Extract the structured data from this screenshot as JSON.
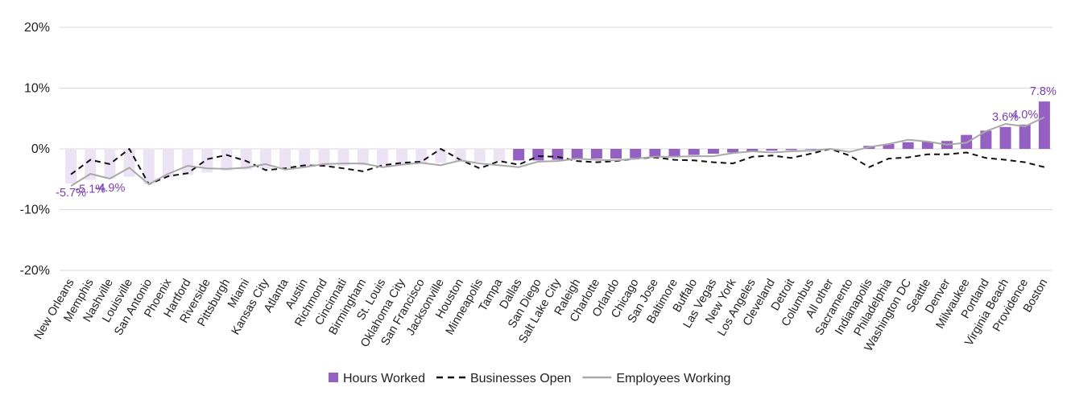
{
  "chart_data": {
    "type": "bar",
    "categories": [
      "New Orleans",
      "Memphis",
      "Nashville",
      "Louisville",
      "San Antonio",
      "Phoenix",
      "Hartford",
      "Riverside",
      "Pittsburgh",
      "Miami",
      "Kansas City",
      "Atlanta",
      "Austin",
      "Richmond",
      "Cincinnati",
      "Birmingham",
      "St. Louis",
      "Oklahoma City",
      "San Francisco",
      "Jacksonville",
      "Houston",
      "Minneapolis",
      "Tampa",
      "Dallas",
      "San Diego",
      "Salt Lake City",
      "Raleigh",
      "Charlotte",
      "Orlando",
      "Chicago",
      "San Jose",
      "Baltimore",
      "Buffalo",
      "Las Vegas",
      "New York",
      "Los Angeles",
      "Cleveland",
      "Detroit",
      "Columbus",
      "All other",
      "Sacramento",
      "Indianapolis",
      "Philadelphia",
      "Washington DC",
      "Seattle",
      "Denver",
      "Milwaukee",
      "Portland",
      "Virginia Beach",
      "Providence",
      "Boston"
    ],
    "series": [
      {
        "name": "Hours Worked",
        "type": "bar",
        "color": "#9461c3",
        "faded_color": "#ece3f4",
        "values": [
          -5.7,
          -5.1,
          -4.9,
          -4.6,
          -5.8,
          -4.7,
          -4.3,
          -3.9,
          -3.6,
          -3.4,
          -3.3,
          -3.2,
          -3.0,
          -2.9,
          -2.8,
          -2.7,
          -2.6,
          -2.5,
          -2.4,
          -2.3,
          -2.2,
          -2.1,
          -2.0,
          -1.9,
          -1.9,
          -1.8,
          -1.7,
          -1.6,
          -1.6,
          -1.5,
          -1.4,
          -1.2,
          -1.0,
          -0.8,
          -0.6,
          -0.4,
          -0.3,
          -0.2,
          -0.1,
          -0.1,
          0.0,
          0.5,
          0.8,
          1.1,
          1.2,
          1.3,
          2.3,
          3.0,
          3.6,
          4.0,
          7.8
        ]
      },
      {
        "name": "Businesses Open",
        "type": "line",
        "dash": true,
        "color": "#111111",
        "values": [
          -4.2,
          -1.8,
          -2.5,
          0.0,
          -5.8,
          -4.5,
          -4.0,
          -1.7,
          -1.0,
          -2.0,
          -3.5,
          -3.2,
          -2.7,
          -2.8,
          -3.2,
          -3.7,
          -2.7,
          -2.3,
          -2.1,
          0.0,
          -1.8,
          -3.2,
          -2.0,
          -2.6,
          -1.2,
          -1.3,
          -2.0,
          -2.2,
          -2.0,
          -1.6,
          -1.4,
          -1.8,
          -1.9,
          -2.2,
          -2.4,
          -1.3,
          -1.1,
          -1.5,
          -0.8,
          0.0,
          -1.1,
          -3.0,
          -1.6,
          -1.4,
          -0.9,
          -0.9,
          -0.6,
          -1.5,
          -1.8,
          -2.2,
          -3.0
        ]
      },
      {
        "name": "Employees Working",
        "type": "line",
        "dash": false,
        "color": "#a9a9a9",
        "values": [
          -6.1,
          -4.1,
          -4.9,
          -3.1,
          -5.8,
          -4.1,
          -2.8,
          -3.2,
          -3.3,
          -3.1,
          -2.5,
          -3.4,
          -3.0,
          -2.5,
          -2.4,
          -2.4,
          -3.0,
          -2.6,
          -2.3,
          -2.7,
          -1.9,
          -2.4,
          -2.7,
          -3.0,
          -2.1,
          -2.0,
          -1.6,
          -1.8,
          -1.9,
          -1.6,
          -1.3,
          -1.3,
          -1.2,
          -1.2,
          -0.7,
          -0.4,
          -0.6,
          -0.4,
          -0.3,
          0.0,
          -0.5,
          0.3,
          0.8,
          1.5,
          1.2,
          0.7,
          1.0,
          2.9,
          4.1,
          3.7,
          5.2
        ]
      }
    ],
    "data_labels": [
      {
        "index": 0,
        "text": "-5.7%"
      },
      {
        "index": 1,
        "text": "-5.1%"
      },
      {
        "index": 2,
        "text": "-4.9%"
      },
      {
        "index": 48,
        "text": "3.6%"
      },
      {
        "index": 49,
        "text": "4.0%"
      },
      {
        "index": 50,
        "text": "7.8%"
      }
    ],
    "highlight_from_index": 23,
    "ylim": [
      -20,
      20
    ],
    "yticks": [
      -20,
      -10,
      0,
      10,
      20
    ],
    "ytick_labels": [
      "-20%",
      "-10%",
      "0%",
      "10%",
      "20%"
    ],
    "grid": true,
    "legend_position": "bottom",
    "title": "",
    "xlabel": "",
    "ylabel": ""
  }
}
